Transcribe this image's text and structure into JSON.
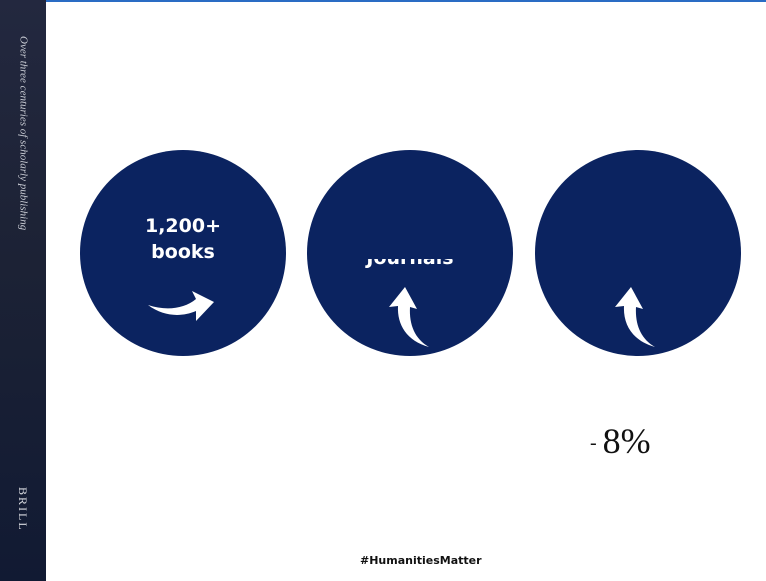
{
  "sidebar": {
    "tagline": "Over three centuries of scholarly publishing",
    "brand": "BRILL"
  },
  "circles": [
    {
      "line1": "1,200+",
      "line2": "books",
      "arrow_icon": "curved-arrow-right-icon"
    },
    {
      "label_partial": "Journals",
      "arrow_icon": "curved-arrow-up-icon"
    },
    {
      "arrow_icon": "curved-arrow-up-icon"
    }
  ],
  "stat": {
    "dash": "-",
    "value": "8%"
  },
  "footer": {
    "hashtag": "#HumanitiesMatter"
  },
  "colors": {
    "circle_fill": "#0b2360",
    "sidebar": "#1c2235",
    "top_border": "#2a6cc4"
  }
}
